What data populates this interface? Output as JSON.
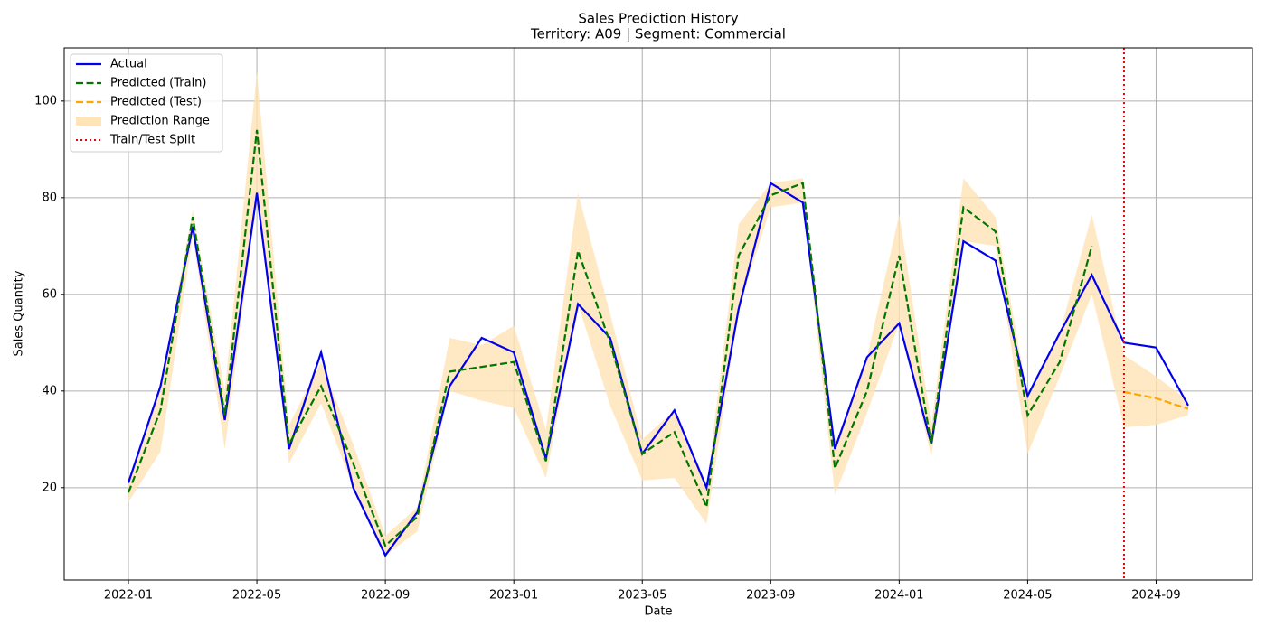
{
  "chart_data": {
    "type": "line",
    "title": "Sales Prediction History",
    "subtitle": "Territory: A09 | Segment: Commercial",
    "x_label": "Date",
    "y_label": "Sales Quantity",
    "x": [
      "2022-01",
      "2022-02",
      "2022-03",
      "2022-04",
      "2022-05",
      "2022-06",
      "2022-07",
      "2022-08",
      "2022-09",
      "2022-10",
      "2022-11",
      "2022-12",
      "2023-01",
      "2023-02",
      "2023-03",
      "2023-04",
      "2023-05",
      "2023-06",
      "2023-07",
      "2023-08",
      "2023-09",
      "2023-10",
      "2023-11",
      "2023-12",
      "2024-01",
      "2024-02",
      "2024-03",
      "2024-04",
      "2024-05",
      "2024-06",
      "2024-07",
      "2024-08",
      "2024-09",
      "2024-10"
    ],
    "series": [
      {
        "name": "Actual",
        "color": "#0000ee",
        "linestyle": "solid",
        "values": [
          21,
          41,
          74,
          34,
          81,
          28,
          48,
          20,
          6,
          15,
          41,
          51,
          48,
          26,
          58,
          51,
          27,
          36,
          20,
          57,
          83,
          79,
          28,
          47,
          54,
          29,
          71,
          67,
          39,
          52,
          64,
          50,
          49,
          37
        ]
      },
      {
        "name": "Predicted (Train)",
        "color": "#007700",
        "linestyle": "dashed",
        "values": [
          19,
          36,
          76,
          35,
          94,
          29,
          41,
          25,
          8,
          14,
          44,
          45,
          46,
          25.5,
          69,
          50,
          27,
          31.5,
          16,
          68,
          80.5,
          83,
          24,
          40,
          68,
          29,
          78,
          73,
          35,
          46,
          70,
          null,
          null,
          null
        ]
      },
      {
        "name": "Predicted (Test)",
        "color": "#ffa500",
        "linestyle": "dashed",
        "values": [
          null,
          null,
          null,
          null,
          null,
          null,
          null,
          null,
          null,
          null,
          null,
          null,
          null,
          null,
          null,
          null,
          null,
          null,
          null,
          null,
          null,
          null,
          null,
          null,
          null,
          null,
          null,
          null,
          null,
          null,
          null,
          39.8,
          38.5,
          36.3
        ]
      }
    ],
    "band": {
      "name": "Prediction Range",
      "color": "#ffe4b5",
      "lower": [
        17,
        27.5,
        72,
        28,
        80,
        25,
        37.5,
        20,
        6,
        11,
        40,
        38,
        36.5,
        22,
        58,
        37,
        21.5,
        22,
        12.5,
        57,
        78,
        79,
        18.5,
        35.5,
        54,
        26.5,
        71,
        70,
        27,
        43,
        60,
        32.5,
        33,
        35
      ],
      "upper": [
        21,
        41,
        77.5,
        40,
        106,
        33,
        46,
        29,
        10,
        16,
        51,
        49.5,
        53.5,
        32,
        81,
        56,
        30,
        36,
        20,
        74.5,
        83,
        84,
        28,
        47,
        76.5,
        33,
        84,
        76,
        39,
        52,
        76.5,
        47.5,
        43,
        38
      ]
    },
    "split": {
      "name": "Train/Test Split",
      "x": "2024-08",
      "color": "#ee0000"
    },
    "xlim": [
      "2021-11",
      "2024-12"
    ],
    "xticks": [
      "2022-01",
      "2022-05",
      "2022-09",
      "2023-01",
      "2023-05",
      "2023-09",
      "2024-01",
      "2024-05",
      "2024-09"
    ],
    "ylim": [
      0.9,
      111
    ],
    "yticks": [
      20,
      40,
      60,
      80,
      100
    ],
    "grid": true,
    "legend": "upper left"
  }
}
